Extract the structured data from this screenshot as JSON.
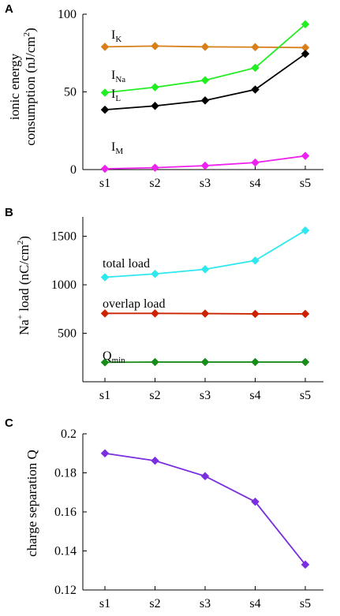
{
  "chart_data": [
    {
      "type": "line",
      "panel": "A",
      "ylabel_line1": "ionic energy",
      "ylabel_line2": "consumption (nJ/cm",
      "ylabel_sup": "2",
      "ylabel_end": ")",
      "categories": [
        "s1",
        "s2",
        "s3",
        "s4",
        "s5"
      ],
      "ylim": [
        0,
        100
      ],
      "yticks": [
        "0",
        "50",
        "100"
      ],
      "ytick_values": [
        0,
        50,
        100
      ],
      "grid": false,
      "series": [
        {
          "name": "I",
          "sub": "K",
          "color": "#d97f1a",
          "values": [
            79,
            79.5,
            79,
            78.8,
            78.5
          ]
        },
        {
          "name": "I",
          "sub": "Na",
          "color": "#22ee22",
          "values": [
            49.5,
            53,
            57.5,
            65.5,
            93.5
          ]
        },
        {
          "name": "I",
          "sub": "L",
          "color": "#000000",
          "values": [
            38.5,
            41,
            44.5,
            51.5,
            74.5
          ]
        },
        {
          "name": "I",
          "sub": "M",
          "color": "#ee22ee",
          "values": [
            0.5,
            1.2,
            2.5,
            4.5,
            8.8
          ]
        }
      ]
    },
    {
      "type": "line",
      "panel": "B",
      "ylabel_pre": "Na",
      "ylabel_sup1": "+",
      "ylabel_mid": " load (nC/cm",
      "ylabel_sup2": "2",
      "ylabel_end": ")",
      "categories": [
        "s1",
        "s2",
        "s3",
        "s4",
        "s5"
      ],
      "ylim": [
        0,
        1700
      ],
      "yticks": [
        "500",
        "1000",
        "1500"
      ],
      "ytick_values": [
        500,
        1000,
        1500
      ],
      "grid": false,
      "series": [
        {
          "name": "total load",
          "sub": "",
          "color": "#2ee8ee",
          "values": [
            1078,
            1112,
            1160,
            1250,
            1560
          ]
        },
        {
          "name": "overlap load",
          "sub": "",
          "color": "#cc2200",
          "values": [
            705,
            705,
            703,
            700,
            700
          ]
        },
        {
          "name": "Q",
          "sub": "min",
          "color": "#1a8c1a",
          "values": [
            200,
            203,
            203,
            203,
            203
          ]
        }
      ]
    },
    {
      "type": "line",
      "panel": "C",
      "ylabel": "charge separation Q",
      "categories": [
        "s1",
        "s2",
        "s3",
        "s4",
        "s5"
      ],
      "ylim": [
        0.12,
        0.2
      ],
      "yticks": [
        "0.12",
        "0.14",
        "0.16",
        "0.18",
        "0.2"
      ],
      "ytick_values": [
        0.12,
        0.14,
        0.16,
        0.18,
        0.2
      ],
      "grid": false,
      "series": [
        {
          "name": "",
          "sub": "",
          "color": "#7a2ee0",
          "values": [
            0.19,
            0.1862,
            0.1783,
            0.1652,
            0.133
          ]
        }
      ]
    }
  ]
}
